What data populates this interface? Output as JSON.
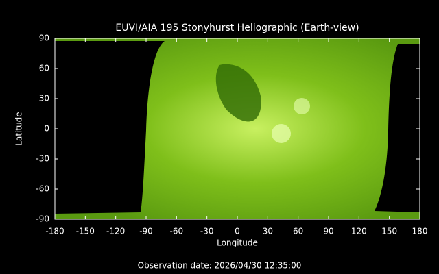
{
  "chart_data": {
    "type": "map",
    "title": "EUVI/AIA 195 Stonyhurst Heliographic (Earth-view)",
    "xlabel": "Longitude",
    "ylabel": "Latitude",
    "footer": "Observation date: 2026/04/30 12:35:00",
    "xlim": [
      -180,
      180
    ],
    "ylim": [
      -90,
      90
    ],
    "xticks": [
      -180,
      -150,
      -120,
      -90,
      -60,
      -30,
      0,
      30,
      60,
      90,
      120,
      150,
      180
    ],
    "yticks": [
      -90,
      -60,
      -30,
      0,
      30,
      60,
      90
    ]
  }
}
